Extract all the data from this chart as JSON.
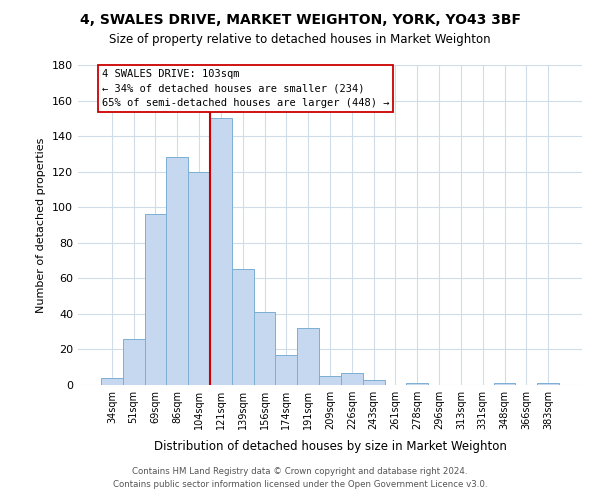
{
  "title": "4, SWALES DRIVE, MARKET WEIGHTON, YORK, YO43 3BF",
  "subtitle": "Size of property relative to detached houses in Market Weighton",
  "xlabel": "Distribution of detached houses by size in Market Weighton",
  "ylabel": "Number of detached properties",
  "bin_labels": [
    "34sqm",
    "51sqm",
    "69sqm",
    "86sqm",
    "104sqm",
    "121sqm",
    "139sqm",
    "156sqm",
    "174sqm",
    "191sqm",
    "209sqm",
    "226sqm",
    "243sqm",
    "261sqm",
    "278sqm",
    "296sqm",
    "313sqm",
    "331sqm",
    "348sqm",
    "366sqm",
    "383sqm"
  ],
  "bar_heights": [
    4,
    26,
    96,
    128,
    120,
    150,
    65,
    41,
    17,
    32,
    5,
    7,
    3,
    0,
    1,
    0,
    0,
    0,
    1,
    0,
    1
  ],
  "bar_color": "#c5d8f0",
  "bar_edge_color": "#7bafd4",
  "vline_x_index": 4,
  "vline_color": "#cc0000",
  "annotation_line1": "4 SWALES DRIVE: 103sqm",
  "annotation_line2": "← 34% of detached houses are smaller (234)",
  "annotation_line3": "65% of semi-detached houses are larger (448) →",
  "annotation_box_edgecolor": "#cc0000",
  "ylim": [
    0,
    180
  ],
  "yticks": [
    0,
    20,
    40,
    60,
    80,
    100,
    120,
    140,
    160,
    180
  ],
  "footer_line1": "Contains HM Land Registry data © Crown copyright and database right 2024.",
  "footer_line2": "Contains public sector information licensed under the Open Government Licence v3.0.",
  "bg_color": "#ffffff",
  "grid_color": "#d0dce8"
}
